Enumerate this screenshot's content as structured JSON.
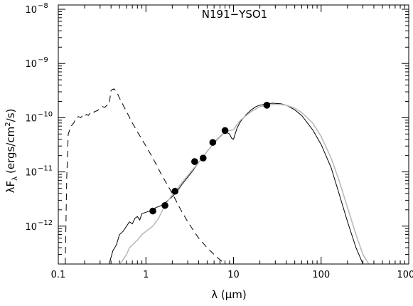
{
  "chart_data": {
    "type": "line",
    "title": "N191−YSO1",
    "xlabel": "λ (μm)",
    "ylabel_main": "λF",
    "ylabel_sub": "λ",
    "ylabel_rest": "(ergs/cm",
    "ylabel_sup": "2",
    "ylabel_end": "/s)",
    "xscale": "log",
    "yscale": "log",
    "xlim": [
      0.1,
      1000
    ],
    "ylim": [
      2e-13,
      1.2e-08
    ],
    "grid": false,
    "x_ticks": [
      {
        "value": 0.1,
        "label": "0.1"
      },
      {
        "value": 1,
        "label": "1"
      },
      {
        "value": 10,
        "label": "10"
      },
      {
        "value": 100,
        "label": "100"
      },
      {
        "value": 1000,
        "label": "1000"
      }
    ],
    "y_ticks": [
      {
        "value": 1e-12,
        "label": "10",
        "exp": "−12"
      },
      {
        "value": 1e-11,
        "label": "10",
        "exp": "−11"
      },
      {
        "value": 1e-10,
        "label": "10",
        "exp": "−10"
      },
      {
        "value": 1e-09,
        "label": "10",
        "exp": "−9"
      },
      {
        "value": 1e-08,
        "label": "10",
        "exp": "−8"
      }
    ],
    "points": {
      "x": [
        1.2,
        1.65,
        2.15,
        3.6,
        4.5,
        5.8,
        8.0,
        24.0
      ],
      "y": [
        1.9e-12,
        2.4e-12,
        4.4e-12,
        1.55e-11,
        1.8e-11,
        3.5e-11,
        5.8e-11,
        1.7e-10
      ]
    },
    "series": [
      {
        "style": "dashed",
        "color": "#000000",
        "x": [
          0.12,
          0.125,
          0.13,
          0.14,
          0.15,
          0.16,
          0.17,
          0.18,
          0.19,
          0.2,
          0.21,
          0.22,
          0.23,
          0.24,
          0.25,
          0.26,
          0.28,
          0.3,
          0.32,
          0.34,
          0.36,
          0.38,
          0.4,
          0.43,
          0.46,
          0.5,
          0.6,
          0.7,
          0.8,
          1.0,
          1.2,
          1.5,
          2.0,
          2.5,
          3.0,
          4.0,
          5.0,
          6.0,
          7.0,
          8.0
        ],
        "y": [
          2e-13,
          8e-12,
          5e-11,
          7e-11,
          8e-11,
          1e-10,
          1.05e-10,
          1e-10,
          1.1e-10,
          1.05e-10,
          1.15e-10,
          1.1e-10,
          1.2e-10,
          1.25e-10,
          1.2e-10,
          1.3e-10,
          1.35e-10,
          1.5e-10,
          1.6e-10,
          1.55e-10,
          1.7e-10,
          1.75e-10,
          3.2e-10,
          3.4e-10,
          3.1e-10,
          2.3e-10,
          1.3e-10,
          8e-11,
          5.5e-11,
          3e-11,
          1.8e-11,
          9e-12,
          4e-12,
          2e-12,
          1.2e-12,
          6e-13,
          4e-13,
          3e-13,
          2.4e-13,
          2e-13
        ]
      },
      {
        "style": "solid",
        "color": "#000000",
        "x": [
          0.38,
          0.42,
          0.46,
          0.5,
          0.55,
          0.6,
          0.65,
          0.7,
          0.75,
          0.8,
          0.85,
          0.9,
          1.0,
          1.1,
          1.2,
          1.3,
          1.5,
          1.7,
          2.0,
          2.3,
          2.6,
          3.0,
          3.5,
          4.0,
          4.5,
          5.0,
          5.5,
          6.0,
          7.0,
          8.0,
          9.0,
          9.5,
          10.0,
          11.0,
          12.0,
          14.0,
          16.0,
          18.0,
          20.0,
          24.0,
          28.0,
          35.0,
          40.0,
          50.0,
          60.0,
          80.0,
          100.0,
          130.0,
          160.0,
          200.0,
          250.0,
          300.0,
          350.0
        ],
        "y": [
          2e-13,
          3.5e-13,
          4.5e-13,
          7e-13,
          8e-13,
          1e-12,
          1.2e-12,
          1.1e-12,
          1.4e-12,
          1.5e-12,
          1.3e-12,
          1.7e-12,
          1.8e-12,
          1.9e-12,
          2e-12,
          2.2e-12,
          2.4e-12,
          2.8e-12,
          3.5e-12,
          4.5e-12,
          6e-12,
          8e-12,
          1.1e-11,
          1.5e-11,
          1.9e-11,
          2.4e-11,
          2.9e-11,
          3.5e-11,
          4.5e-11,
          5.5e-11,
          5e-11,
          4.2e-11,
          4e-11,
          6.5e-11,
          8.5e-11,
          1.15e-10,
          1.4e-10,
          1.6e-10,
          1.7e-10,
          1.8e-10,
          1.85e-10,
          1.8e-10,
          1.7e-10,
          1.4e-10,
          1.1e-10,
          6e-11,
          3.2e-11,
          1.2e-11,
          4e-12,
          1.2e-12,
          4e-13,
          2e-13,
          1.6e-13
        ]
      },
      {
        "style": "solid",
        "color": "#bbbbbb",
        "x": [
          0.5,
          0.55,
          0.6,
          0.65,
          0.7,
          0.8,
          0.9,
          1.0,
          1.1,
          1.2,
          1.3,
          1.4,
          1.5,
          1.7,
          2.0,
          2.3,
          2.6,
          3.0,
          3.5,
          4.0,
          4.5,
          5.0,
          6.0,
          7.0,
          8.0,
          9.0,
          10.0,
          11.0,
          12.0,
          14.0,
          16.0,
          18.0,
          20.0,
          24.0,
          28.0,
          35.0,
          40.0,
          50.0,
          60.0,
          80.0,
          100.0,
          130.0,
          160.0,
          200.0,
          250.0,
          300.0,
          350.0,
          400.0
        ],
        "y": [
          2e-13,
          2.4e-13,
          3e-13,
          4e-13,
          4.5e-13,
          5.5e-13,
          7e-13,
          8e-13,
          9e-13,
          1e-12,
          1.2e-12,
          1.4e-12,
          1.8e-12,
          2.6e-12,
          3.8e-12,
          5e-12,
          6.5e-12,
          8.5e-12,
          1.15e-11,
          1.5e-11,
          1.9e-11,
          2.4e-11,
          3.4e-11,
          4.4e-11,
          5.4e-11,
          5.8e-11,
          6e-11,
          7.5e-11,
          9e-11,
          1.1e-10,
          1.3e-10,
          1.45e-10,
          1.6e-10,
          1.7e-10,
          1.75e-10,
          1.75e-10,
          1.7e-10,
          1.5e-10,
          1.25e-10,
          8e-11,
          4.5e-11,
          1.8e-11,
          7e-12,
          2.2e-12,
          7e-13,
          3e-13,
          2e-13,
          1.6e-13
        ]
      }
    ]
  }
}
